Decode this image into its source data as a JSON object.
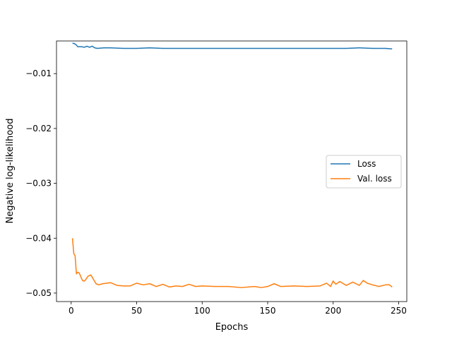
{
  "chart_data": {
    "type": "line",
    "title": "",
    "xlabel": "Epochs",
    "ylabel": "Negative log-likelihood",
    "xlim": [
      -11.2,
      256.2
    ],
    "ylim": [
      -0.05155,
      -0.00405
    ],
    "xticks": [
      0,
      50,
      100,
      150,
      200,
      250
    ],
    "xtick_labels": [
      "0",
      "50",
      "100",
      "150",
      "200",
      "250"
    ],
    "yticks": [
      -0.05,
      -0.04,
      -0.03,
      -0.02,
      -0.01
    ],
    "ytick_labels": [
      "−0.05",
      "−0.04",
      "−0.03",
      "−0.02",
      "−0.01"
    ],
    "grid": false,
    "legend": "center-right",
    "series": [
      {
        "name": "Loss",
        "color": "#1f77b4",
        "x": [
          1,
          2,
          3,
          4,
          5,
          6,
          8,
          10,
          12,
          14,
          16,
          18,
          20,
          25,
          30,
          40,
          50,
          60,
          70,
          80,
          90,
          100,
          110,
          120,
          130,
          140,
          150,
          160,
          170,
          180,
          190,
          200,
          210,
          220,
          230,
          240,
          245
        ],
        "y": [
          -0.00445,
          -0.0045,
          -0.0046,
          -0.0048,
          -0.0051,
          -0.0051,
          -0.0051,
          -0.0052,
          -0.005,
          -0.0052,
          -0.005,
          -0.0053,
          -0.0054,
          -0.0053,
          -0.0053,
          -0.0054,
          -0.0054,
          -0.0053,
          -0.0054,
          -0.0054,
          -0.0054,
          -0.0054,
          -0.0054,
          -0.0054,
          -0.0054,
          -0.0054,
          -0.0054,
          -0.0054,
          -0.0054,
          -0.0054,
          -0.0054,
          -0.0054,
          -0.0054,
          -0.0053,
          -0.0054,
          -0.0054,
          -0.0055
        ]
      },
      {
        "name": "Val. loss",
        "color": "#ff7f0e",
        "x": [
          1,
          2,
          3,
          4,
          5,
          6,
          7,
          8,
          9,
          10,
          11,
          12,
          13,
          15,
          17,
          19,
          21,
          24,
          27,
          30,
          35,
          40,
          45,
          50,
          55,
          60,
          65,
          70,
          75,
          80,
          85,
          90,
          95,
          100,
          110,
          120,
          130,
          140,
          145,
          150,
          155,
          160,
          170,
          180,
          190,
          195,
          198,
          200,
          202,
          205,
          210,
          215,
          220,
          223,
          226,
          230,
          235,
          240,
          243,
          245
        ],
        "y": [
          -0.04,
          -0.0428,
          -0.0432,
          -0.0465,
          -0.0462,
          -0.0463,
          -0.0468,
          -0.0474,
          -0.0478,
          -0.0478,
          -0.0476,
          -0.0472,
          -0.0469,
          -0.0467,
          -0.0475,
          -0.0483,
          -0.0485,
          -0.0483,
          -0.0482,
          -0.0481,
          -0.0486,
          -0.0487,
          -0.0487,
          -0.0482,
          -0.0485,
          -0.0483,
          -0.0488,
          -0.0484,
          -0.0489,
          -0.0487,
          -0.0488,
          -0.0484,
          -0.0488,
          -0.0487,
          -0.0488,
          -0.0488,
          -0.049,
          -0.0488,
          -0.049,
          -0.0488,
          -0.0483,
          -0.0488,
          -0.0487,
          -0.0488,
          -0.0487,
          -0.0482,
          -0.0488,
          -0.0478,
          -0.0484,
          -0.0479,
          -0.0486,
          -0.048,
          -0.0486,
          -0.0477,
          -0.0482,
          -0.0485,
          -0.0488,
          -0.0485,
          -0.0485,
          -0.0489
        ]
      }
    ]
  }
}
